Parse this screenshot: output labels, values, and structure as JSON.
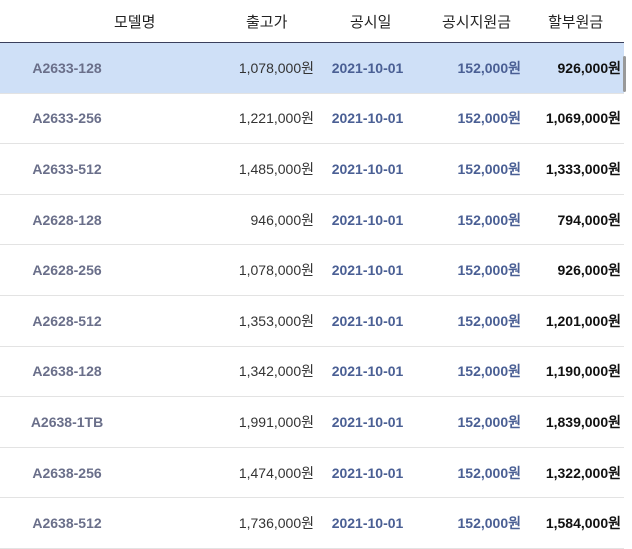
{
  "headers": {
    "model": "모델명",
    "release_price": "출고가",
    "announce_date": "공시일",
    "subsidy": "공시지원금",
    "installment": "할부원금"
  },
  "rows": [
    {
      "model": "A2633-128",
      "price": "1,078,000원",
      "date": "2021-10-01",
      "subsidy": "152,000원",
      "installment": "926,000원"
    },
    {
      "model": "A2633-256",
      "price": "1,221,000원",
      "date": "2021-10-01",
      "subsidy": "152,000원",
      "installment": "1,069,000원"
    },
    {
      "model": "A2633-512",
      "price": "1,485,000원",
      "date": "2021-10-01",
      "subsidy": "152,000원",
      "installment": "1,333,000원"
    },
    {
      "model": "A2628-128",
      "price": "946,000원",
      "date": "2021-10-01",
      "subsidy": "152,000원",
      "installment": "794,000원"
    },
    {
      "model": "A2628-256",
      "price": "1,078,000원",
      "date": "2021-10-01",
      "subsidy": "152,000원",
      "installment": "926,000원"
    },
    {
      "model": "A2628-512",
      "price": "1,353,000원",
      "date": "2021-10-01",
      "subsidy": "152,000원",
      "installment": "1,201,000원"
    },
    {
      "model": "A2638-128",
      "price": "1,342,000원",
      "date": "2021-10-01",
      "subsidy": "152,000원",
      "installment": "1,190,000원"
    },
    {
      "model": "A2638-1TB",
      "price": "1,991,000원",
      "date": "2021-10-01",
      "subsidy": "152,000원",
      "installment": "1,839,000원"
    },
    {
      "model": "A2638-256",
      "price": "1,474,000원",
      "date": "2021-10-01",
      "subsidy": "152,000원",
      "installment": "1,322,000원"
    },
    {
      "model": "A2638-512",
      "price": "1,736,000원",
      "date": "2021-10-01",
      "subsidy": "152,000원",
      "installment": "1,584,000원"
    }
  ],
  "colors": {
    "selected_row": "#cfe0f7",
    "header_border": "#3a3f5c",
    "accent_blue": "#4a5f94",
    "model_gray": "#6a6f8a"
  }
}
